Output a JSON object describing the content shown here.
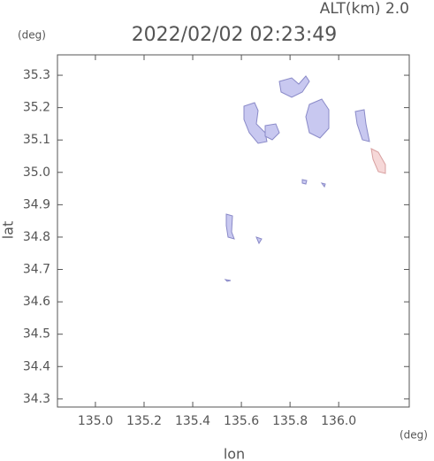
{
  "chart_data": {
    "type": "map",
    "title": "2022/02/02 02:23:49",
    "subtitle": "ALT(km) 2.0",
    "x_label": "lon",
    "y_label": "lat",
    "x_unit": "(deg)",
    "y_unit": "(deg)",
    "xlim": [
      134.844,
      136.29
    ],
    "ylim": [
      34.275,
      35.363
    ],
    "xticks": [
      {
        "value": 135,
        "label": "135.0"
      },
      135.2,
      135.4,
      135.6,
      135.8,
      {
        "value": 136,
        "label": "136.0"
      }
    ],
    "yticks": [
      34.3,
      34.4,
      34.5,
      34.6,
      34.7,
      34.8,
      34.9,
      {
        "value": 35,
        "label": "35.0"
      },
      35.1,
      35.2,
      35.3
    ]
  }
}
